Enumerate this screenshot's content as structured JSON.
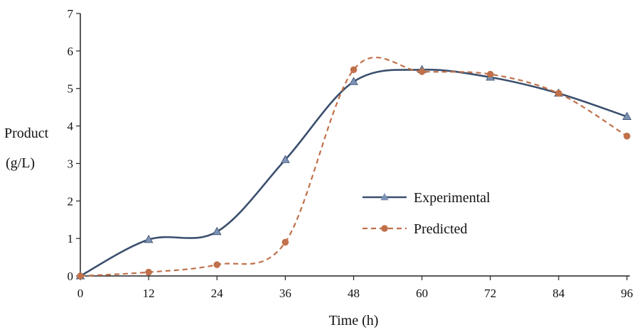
{
  "chart_data": {
    "type": "line",
    "xlabel": "Time (h)",
    "ylabel": [
      "Product",
      "(g/L)"
    ],
    "x_ticks": [
      "0",
      "12",
      "24",
      "36",
      "48",
      "60",
      "72",
      "84",
      "96"
    ],
    "y_ticks": [
      "0",
      "1",
      "2",
      "3",
      "4",
      "5",
      "6",
      "7"
    ],
    "xlim": [
      0,
      96
    ],
    "ylim": [
      0,
      7
    ],
    "grid": false,
    "legend_position": "center-right",
    "series": [
      {
        "name": "Experimental",
        "color": "#3b4f6e",
        "line_style": "solid",
        "marker": "triangle",
        "points": [
          [
            0,
            0
          ],
          [
            12,
            0.97
          ],
          [
            24,
            1.18
          ],
          [
            36,
            3.1
          ],
          [
            48,
            5.18
          ],
          [
            60,
            5.5
          ],
          [
            72,
            5.3
          ],
          [
            84,
            4.87
          ],
          [
            96,
            4.25
          ]
        ]
      },
      {
        "name": "Predicted",
        "color": "#c0704a",
        "line_style": "dashed",
        "marker": "circle",
        "points": [
          [
            0,
            0
          ],
          [
            12,
            0.1
          ],
          [
            24,
            0.3
          ],
          [
            36,
            0.9
          ],
          [
            48,
            5.5
          ],
          [
            60,
            5.45
          ],
          [
            72,
            5.38
          ],
          [
            84,
            4.87
          ],
          [
            96,
            3.73
          ]
        ]
      }
    ]
  }
}
